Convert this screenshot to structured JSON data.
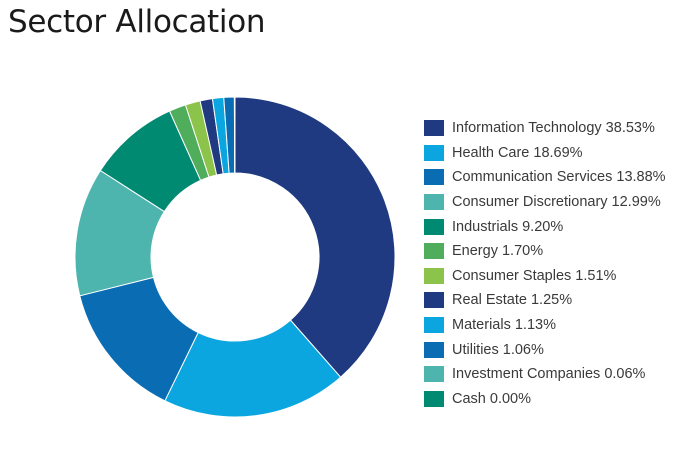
{
  "title": "Sector Allocation",
  "chart_data": {
    "type": "pie",
    "style": "donut",
    "title": "Sector Allocation",
    "legend_position": "right",
    "series": [
      {
        "name": "Information Technology",
        "value": 38.53,
        "label": "Information Technology 38.53%",
        "color": "#1f3a80"
      },
      {
        "name": "Health Care",
        "value": 18.69,
        "label": "Health Care 18.69%",
        "color": "#0ba6df"
      },
      {
        "name": "Communication Services",
        "value": 13.88,
        "label": "Communication Services 13.88%",
        "color": "#0a6db4"
      },
      {
        "name": "Consumer Discretionary",
        "value": 12.99,
        "label": "Consumer Discretionary 12.99%",
        "color": "#4db5ad"
      },
      {
        "name": "Industrials",
        "value": 9.2,
        "label": "Industrials 9.20%",
        "color": "#008a72"
      },
      {
        "name": "Energy",
        "value": 1.7,
        "label": "Energy 1.70%",
        "color": "#4fad5b"
      },
      {
        "name": "Consumer Staples",
        "value": 1.51,
        "label": "Consumer Staples 1.51%",
        "color": "#8cc34a"
      },
      {
        "name": "Real Estate",
        "value": 1.25,
        "label": "Real Estate 1.25%",
        "color": "#1f3a80"
      },
      {
        "name": "Materials",
        "value": 1.13,
        "label": "Materials 1.13%",
        "color": "#0ba6df"
      },
      {
        "name": "Utilities",
        "value": 1.06,
        "label": "Utilities 1.06%",
        "color": "#0a6db4"
      },
      {
        "name": "Investment Companies",
        "value": 0.06,
        "label": "Investment Companies 0.06%",
        "color": "#4db5ad"
      },
      {
        "name": "Cash",
        "value": 0.0,
        "label": "Cash 0.00%",
        "color": "#008a72"
      }
    ]
  }
}
